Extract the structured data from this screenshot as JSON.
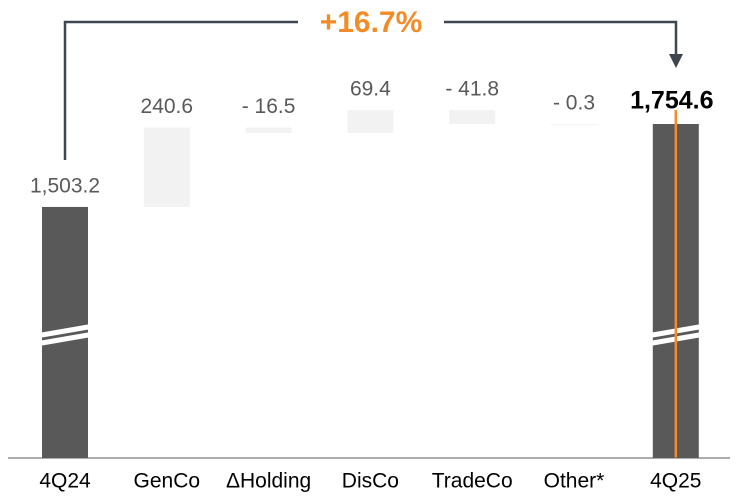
{
  "chart_data": {
    "type": "waterfall",
    "annotation": "+16.7%",
    "categories": [
      "4Q24",
      "GenCo",
      "ΔHolding",
      "DisCo",
      "TradeCo",
      "Other*",
      "4Q25"
    ],
    "values": [
      1503.2,
      240.6,
      -16.5,
      69.4,
      -41.8,
      -0.3,
      1754.6
    ],
    "value_labels": [
      "1,503.2",
      "240.6",
      "- 16.5",
      "69.4",
      "- 41.8",
      "- 0.3",
      "1,754.6"
    ],
    "total_color": "#595959",
    "delta_color": "#f2f2f2",
    "accent_color": "#f28c28"
  }
}
